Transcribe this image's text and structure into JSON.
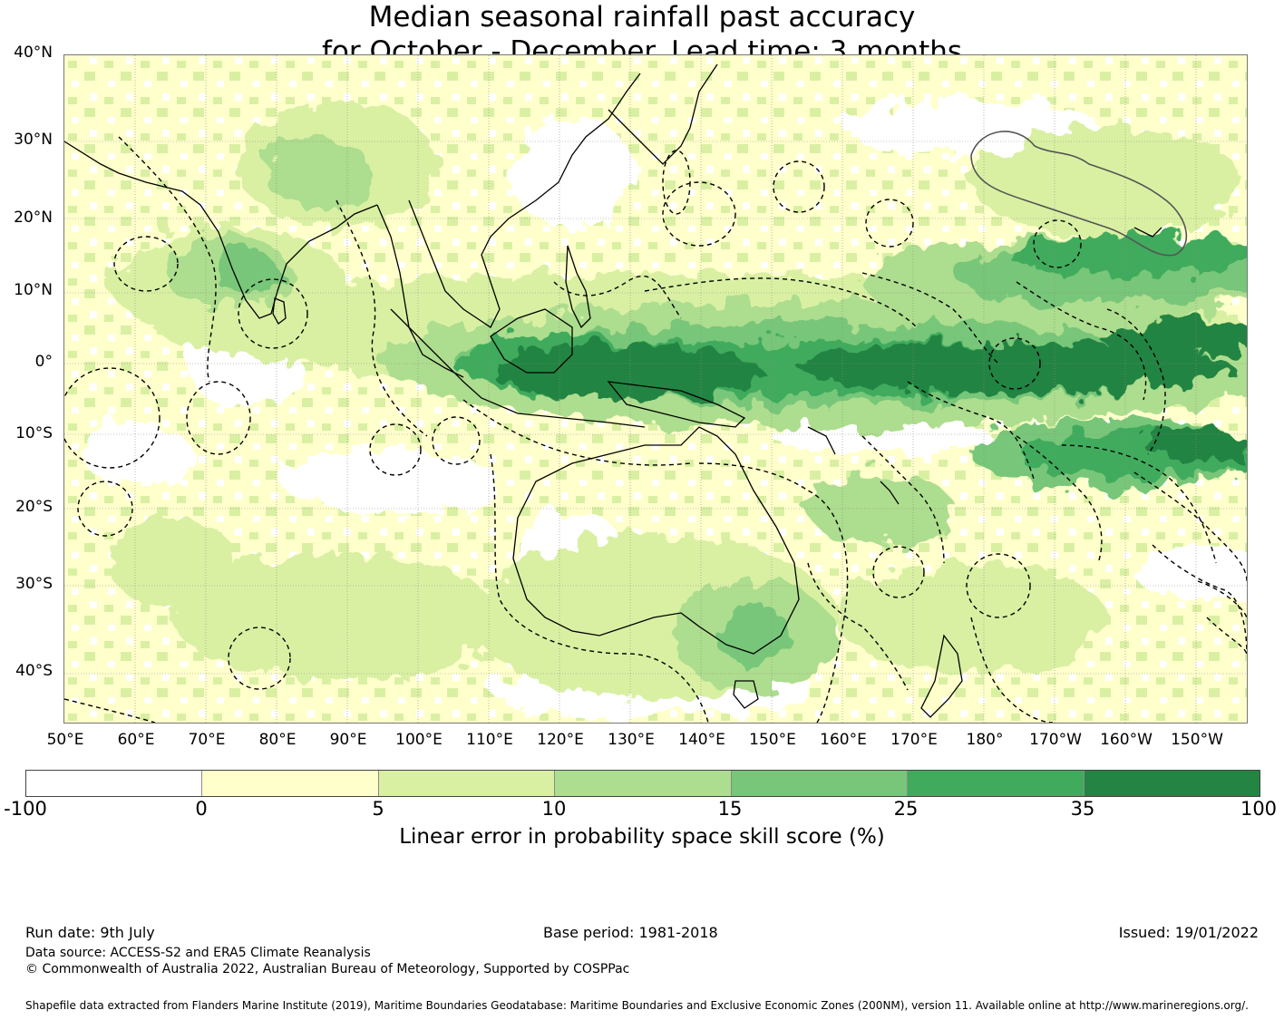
{
  "title": {
    "line1": "Median seasonal rainfall past accuracy",
    "line2": "for October - December. Lead time: 3 months"
  },
  "map": {
    "latitude_labels": [
      "40°N",
      "30°N",
      "20°N",
      "10°N",
      "0°",
      "10°S",
      "20°S",
      "30°S",
      "40°S"
    ],
    "longitude_labels": [
      "50°E",
      "60°E",
      "70°E",
      "80°E",
      "90°E",
      "100°E",
      "110°E",
      "120°E",
      "130°E",
      "140°E",
      "150°E",
      "160°E",
      "170°E",
      "180°",
      "170°W",
      "160°W",
      "150°W"
    ],
    "extent": {
      "lon_min": 50,
      "lon_max": 217,
      "lat_min": -46,
      "lat_max": 40
    },
    "colors": {
      "class_0_5": "#ffffcc",
      "class_5_10": "#d9f0a3",
      "class_10_15": "#addd8e",
      "class_15_25": "#78c679",
      "class_25_35": "#41ab5d",
      "class_35_100": "#238443"
    },
    "icons": [
      "coastline",
      "eez-boundary",
      "hawaii-boundary"
    ]
  },
  "colorbar": {
    "ticks": [
      "-100",
      "0",
      "5",
      "10",
      "15",
      "25",
      "35",
      "100"
    ],
    "colors": [
      "#ffffff",
      "#ffffcc",
      "#d9f0a3",
      "#addd8e",
      "#78c679",
      "#41ab5d",
      "#238443"
    ],
    "label": "Linear error in probability space skill score (%)"
  },
  "footer": {
    "run_date": "Run date: 9th July",
    "base_period": "Base period: 1981-2018",
    "issued": "Issued: 19/01/2022",
    "data_source": "Data source: ACCESS-S2 and ERA5 Climate Reanalysis",
    "copyright": "© Commonwealth of Australia 2022, Australian Bureau of Meteorology, Supported by COSPPac",
    "shapefile": "Shapefile data extracted from Flanders Marine Institute (2019), Maritime Boundaries Geodatabase: Maritime Boundaries and Exclusive Economic Zones (200NM), version 11. Available online at http://www.marineregions.org/."
  }
}
